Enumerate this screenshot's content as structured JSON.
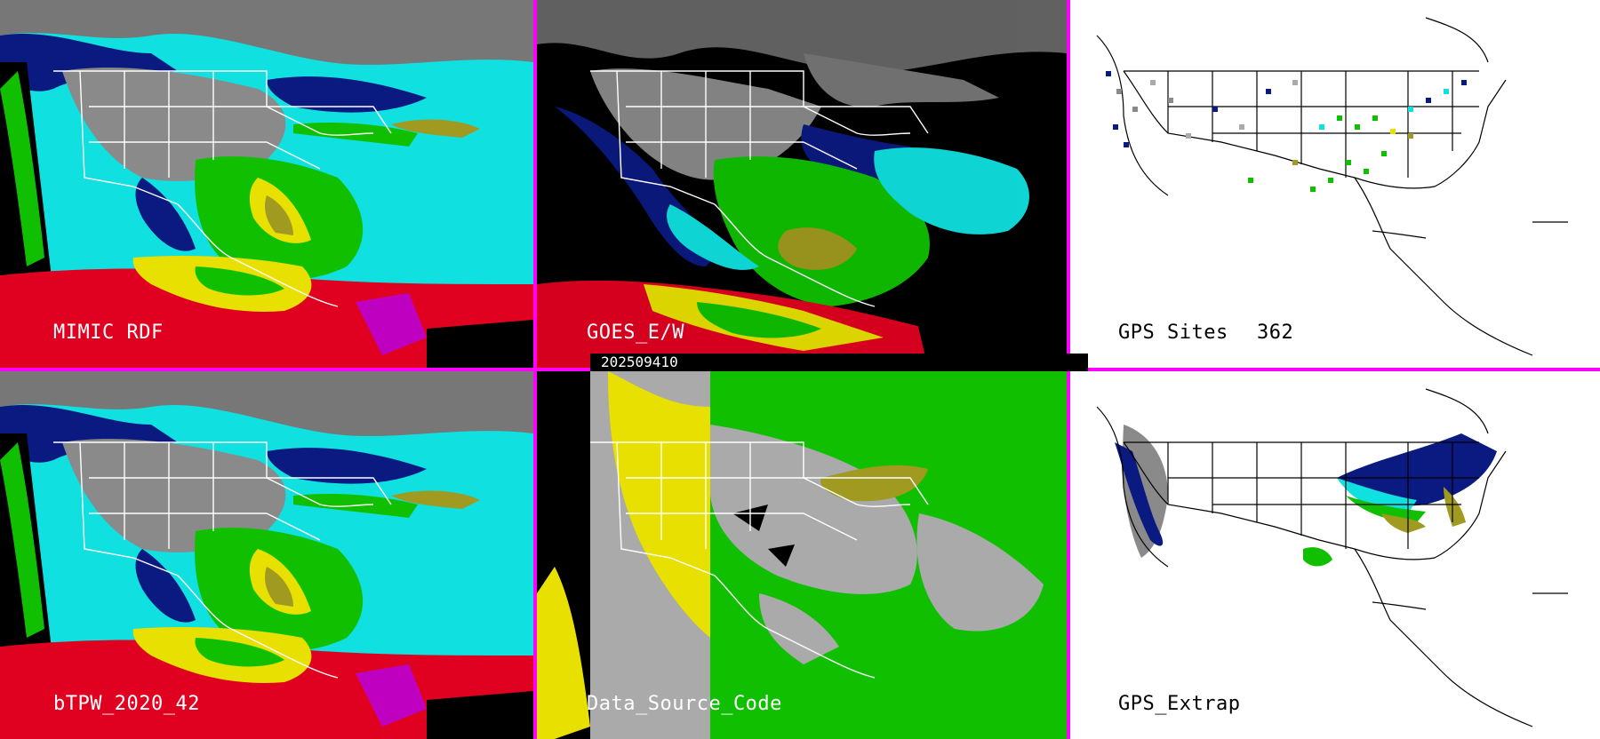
{
  "colors": {
    "separator": "#ff00ff",
    "land_grey": "#8a8a8a",
    "moist_blue": "#0b1a80",
    "cyan": "#10e0e0",
    "green": "#10c000",
    "olive": "#a09a20",
    "yellow": "#e8e000",
    "red": "#e00020",
    "magenta": "#c000c0",
    "code_grey": "#aaaaaa"
  },
  "panels": [
    {
      "id": "mimic-rdf",
      "label": "MIMIC RDF",
      "theme": "satellite"
    },
    {
      "id": "goes-ew",
      "label": "GOES_E/W",
      "theme": "goes"
    },
    {
      "id": "gps-sites",
      "label": "GPS Sites",
      "count": "362",
      "theme": "map"
    },
    {
      "id": "btpw",
      "label": "bTPW_2020_42",
      "theme": "satellite"
    },
    {
      "id": "data-source-code",
      "label": "Data_Source_Code",
      "theme": "code"
    },
    {
      "id": "gps-extrap",
      "label": "GPS_Extrap",
      "theme": "map"
    }
  ],
  "timestamp": "202509410"
}
